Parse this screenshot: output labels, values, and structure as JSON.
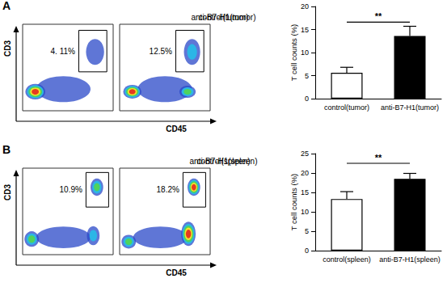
{
  "chart_data": [
    {
      "type": "scatter",
      "panel": "A",
      "title": "control(tumor)",
      "xlabel": "CD45",
      "ylabel": "CD3",
      "xlim": [
        0,
        100
      ],
      "ylim": [
        0,
        100
      ],
      "tick_labels": false,
      "gate": {
        "x": [
          62,
          93
        ],
        "y": [
          45,
          93
        ],
        "label": "4. 11%"
      },
      "clusters": [
        {
          "x": 45,
          "y": 25,
          "spread": [
            60,
            30
          ],
          "level": 0
        },
        {
          "x": 80,
          "y": 68,
          "spread": [
            20,
            30
          ],
          "level": 0
        },
        {
          "x": 14,
          "y": 22,
          "spread": [
            22,
            18
          ],
          "level": 4
        }
      ]
    },
    {
      "type": "scatter",
      "title": "anti-B7-H1(tumor)",
      "xlim": [
        0,
        100
      ],
      "ylim": [
        0,
        100
      ],
      "tick_labels": false,
      "gate": {
        "x": [
          62,
          93
        ],
        "y": [
          45,
          93
        ],
        "label": "12.5%"
      },
      "clusters": [
        {
          "x": 50,
          "y": 25,
          "spread": [
            60,
            30
          ],
          "level": 0
        },
        {
          "x": 80,
          "y": 68,
          "spread": [
            18,
            30
          ],
          "level": 1
        },
        {
          "x": 75,
          "y": 22,
          "spread": [
            18,
            14
          ],
          "level": 2
        },
        {
          "x": 14,
          "y": 22,
          "spread": [
            20,
            16
          ],
          "level": 4
        }
      ]
    },
    {
      "type": "bar",
      "ylabel": "T cell counts (%)",
      "categories": [
        "control(tumor)",
        "anti-B7-H1(tumor)"
      ],
      "values": [
        5.6,
        13.6
      ],
      "errors": [
        1.2,
        2.1
      ],
      "colors": [
        "#ffffff",
        "#000000"
      ],
      "ylim": [
        0,
        20
      ],
      "yticks": [
        0,
        5,
        10,
        15,
        20
      ],
      "bracket": {
        "label": "**",
        "y": 16.6
      }
    },
    {
      "type": "scatter",
      "panel": "B",
      "title": "control(spleen)",
      "xlabel": "CD45",
      "ylabel": "CD3",
      "xlim": [
        0,
        100
      ],
      "ylim": [
        0,
        100
      ],
      "tick_labels": false,
      "gate": {
        "x": [
          70,
          95
        ],
        "y": [
          55,
          95
        ],
        "label": "10.9%"
      },
      "clusters": [
        {
          "x": 45,
          "y": 20,
          "spread": [
            60,
            25
          ],
          "level": 0
        },
        {
          "x": 78,
          "y": 22,
          "spread": [
            14,
            22
          ],
          "level": 1
        },
        {
          "x": 82,
          "y": 78,
          "spread": [
            14,
            20
          ],
          "level": 2
        },
        {
          "x": 10,
          "y": 18,
          "spread": [
            16,
            18
          ],
          "level": 2
        }
      ]
    },
    {
      "type": "scatter",
      "title": "anti-B7-H1(spleen)",
      "xlim": [
        0,
        100
      ],
      "ylim": [
        0,
        100
      ],
      "tick_labels": false,
      "gate": {
        "x": [
          70,
          95
        ],
        "y": [
          55,
          95
        ],
        "label": "18.2%"
      },
      "clusters": [
        {
          "x": 45,
          "y": 20,
          "spread": [
            60,
            25
          ],
          "level": 0
        },
        {
          "x": 10,
          "y": 15,
          "spread": [
            16,
            16
          ],
          "level": 2
        },
        {
          "x": 76,
          "y": 24,
          "spread": [
            16,
            28
          ],
          "level": 4
        },
        {
          "x": 82,
          "y": 78,
          "spread": [
            14,
            20
          ],
          "level": 4
        }
      ]
    },
    {
      "type": "bar",
      "ylabel": "T cell counts (%)",
      "categories": [
        "control(spleen)",
        "anti-B7-H1(spleen)"
      ],
      "values": [
        13.3,
        18.5
      ],
      "errors": [
        1.9,
        1.4
      ],
      "colors": [
        "#ffffff",
        "#000000"
      ],
      "ylim": [
        0,
        25
      ],
      "yticks": [
        0,
        5,
        10,
        15,
        20,
        25
      ],
      "bracket": {
        "label": "**",
        "y": 22.5
      }
    }
  ]
}
